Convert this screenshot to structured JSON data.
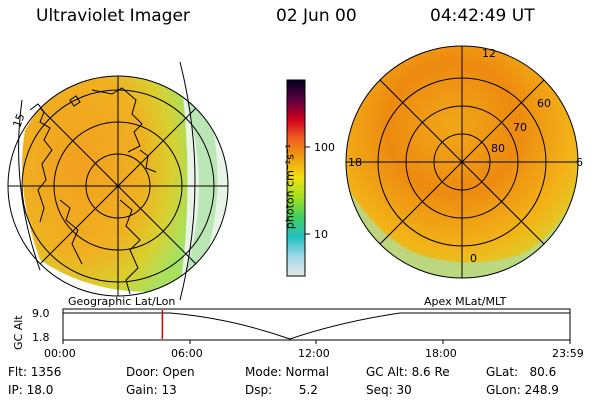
{
  "header": {
    "title": "Ultraviolet Imager",
    "date": "02 Jun 00",
    "time": "04:42:49  UT"
  },
  "colorbar": {
    "unit_label": "photon cm⁻²s⁻¹",
    "ticks": [
      "100",
      "10"
    ]
  },
  "left_map": {
    "caption": "Geographic Lat/Lon",
    "edge_label": "15"
  },
  "right_map": {
    "caption": "Apex MLat/MLT",
    "mlat_labels": [
      "60",
      "70",
      "80"
    ],
    "mlt_labels": [
      "12",
      "18",
      "6",
      "0"
    ]
  },
  "altitude_plot": {
    "axis_label": "GC Alt",
    "y_ticks": [
      "9.0",
      "1.8"
    ],
    "x_ticks": [
      "00:00",
      "06:00",
      "12:00",
      "18:00",
      "23:59"
    ],
    "current_time_fraction": 0.196
  },
  "footer": {
    "flt": "Flt:  1356",
    "ip": "IP:  18.0",
    "door": "Door:  Open",
    "gain": "Gain:  13",
    "mode": "Mode:  Normal",
    "dsp": "Dsp:       5.2",
    "gcalt": "GC Alt:  8.6 Re",
    "seq": "Seq:  30",
    "glat": "GLat:   80.6",
    "glon": "GLon:  248.9"
  },
  "colors": {
    "aurora_high": "#ee8a10",
    "aurora_mid": "#f2b418",
    "aurora_low": "#c8e040",
    "marker": "#dd0000"
  }
}
